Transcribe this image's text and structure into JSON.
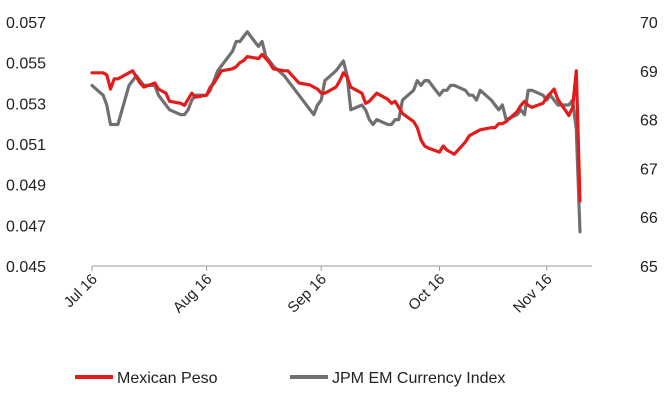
{
  "chart_data": {
    "type": "line",
    "title": "",
    "x": [
      "01-Jul-16",
      "04-Jul-16",
      "05-Jul-16",
      "06-Jul-16",
      "07-Jul-16",
      "08-Jul-16",
      "11-Jul-16",
      "12-Jul-16",
      "13-Jul-16",
      "14-Jul-16",
      "15-Jul-16",
      "18-Jul-16",
      "19-Jul-16",
      "20-Jul-16",
      "21-Jul-16",
      "22-Jul-16",
      "25-Jul-16",
      "26-Jul-16",
      "27-Jul-16",
      "28-Jul-16",
      "29-Jul-16",
      "01-Aug-16",
      "02-Aug-16",
      "03-Aug-16",
      "04-Aug-16",
      "05-Aug-16",
      "08-Aug-16",
      "09-Aug-16",
      "10-Aug-16",
      "11-Aug-16",
      "12-Aug-16",
      "15-Aug-16",
      "16-Aug-16",
      "17-Aug-16",
      "18-Aug-16",
      "19-Aug-16",
      "22-Aug-16",
      "23-Aug-16",
      "24-Aug-16",
      "25-Aug-16",
      "26-Aug-16",
      "29-Aug-16",
      "30-Aug-16",
      "31-Aug-16",
      "01-Sep-16",
      "02-Sep-16",
      "05-Sep-16",
      "06-Sep-16",
      "07-Sep-16",
      "08-Sep-16",
      "09-Sep-16",
      "12-Sep-16",
      "13-Sep-16",
      "14-Sep-16",
      "15-Sep-16",
      "16-Sep-16",
      "19-Sep-16",
      "20-Sep-16",
      "21-Sep-16",
      "22-Sep-16",
      "23-Sep-16",
      "26-Sep-16",
      "27-Sep-16",
      "28-Sep-16",
      "29-Sep-16",
      "30-Sep-16",
      "03-Oct-16",
      "04-Oct-16",
      "05-Oct-16",
      "06-Oct-16",
      "07-Oct-16",
      "10-Oct-16",
      "11-Oct-16",
      "12-Oct-16",
      "13-Oct-16",
      "14-Oct-16",
      "17-Oct-16",
      "18-Oct-16",
      "19-Oct-16",
      "20-Oct-16",
      "21-Oct-16",
      "24-Oct-16",
      "25-Oct-16",
      "26-Oct-16",
      "27-Oct-16",
      "28-Oct-16",
      "31-Oct-16",
      "01-Nov-16",
      "02-Nov-16",
      "03-Nov-16",
      "04-Nov-16",
      "07-Nov-16",
      "08-Nov-16",
      "09-Nov-16",
      "10-Nov-16"
    ],
    "series": [
      {
        "name": "Mexican Peso",
        "color": "#e31b1b",
        "axis": "left",
        "values": [
          0.0545,
          0.0545,
          0.0544,
          0.0537,
          0.0542,
          0.0542,
          0.0545,
          0.0546,
          0.0543,
          0.054,
          0.0538,
          0.054,
          0.0537,
          0.0536,
          0.0535,
          0.0531,
          0.053,
          0.0529,
          0.0532,
          0.0535,
          0.0533,
          0.0534,
          0.0538,
          0.054,
          0.0543,
          0.0546,
          0.0547,
          0.0548,
          0.055,
          0.0551,
          0.0553,
          0.0552,
          0.0554,
          0.0552,
          0.055,
          0.0547,
          0.0546,
          0.0546,
          0.0544,
          0.0542,
          0.054,
          0.0539,
          0.0538,
          0.0537,
          0.0535,
          0.0535,
          0.0538,
          0.0541,
          0.0545,
          0.0543,
          0.0538,
          0.0535,
          0.053,
          0.0531,
          0.0533,
          0.0535,
          0.0532,
          0.053,
          0.0531,
          0.0528,
          0.0525,
          0.0521,
          0.0518,
          0.0512,
          0.0509,
          0.0508,
          0.0506,
          0.0509,
          0.0507,
          0.0506,
          0.0505,
          0.0511,
          0.0514,
          0.0515,
          0.0516,
          0.0517,
          0.0518,
          0.0518,
          0.052,
          0.052,
          0.0521,
          0.0526,
          0.0529,
          0.0531,
          0.0529,
          0.0528,
          0.053,
          0.0533,
          0.0535,
          0.0537,
          0.0532,
          0.0524,
          0.0528,
          0.0546,
          0.0482
        ]
      },
      {
        "name": "JPM EM Currency Index",
        "color": "#707070",
        "axis": "right",
        "values": [
          68.7,
          68.5,
          68.3,
          67.9,
          67.9,
          67.9,
          68.7,
          68.8,
          68.9,
          68.8,
          68.7,
          68.7,
          68.5,
          68.4,
          68.3,
          68.2,
          68.1,
          68.1,
          68.2,
          68.4,
          68.5,
          68.5,
          68.6,
          68.8,
          69.0,
          69.1,
          69.4,
          69.6,
          69.6,
          69.7,
          69.8,
          69.5,
          69.6,
          69.3,
          69.2,
          69.1,
          68.9,
          68.8,
          68.7,
          68.6,
          68.5,
          68.2,
          68.1,
          68.3,
          68.4,
          68.8,
          69.0,
          69.1,
          69.2,
          68.9,
          68.2,
          68.3,
          68.2,
          68.0,
          67.9,
          68.0,
          67.9,
          67.9,
          68.0,
          68.0,
          68.4,
          68.6,
          68.8,
          68.7,
          68.8,
          68.8,
          68.5,
          68.6,
          68.6,
          68.7,
          68.7,
          68.6,
          68.5,
          68.5,
          68.4,
          68.6,
          68.4,
          68.3,
          68.2,
          68.3,
          68.0,
          68.1,
          68.2,
          68.1,
          68.6,
          68.6,
          68.5,
          68.4,
          68.5,
          68.4,
          68.3,
          68.3,
          68.4,
          67.8,
          65.7
        ]
      }
    ],
    "y_left": {
      "ylim": [
        0.045,
        0.057
      ],
      "ticks": [
        "0.057",
        "0.055",
        "0.053",
        "0.051",
        "0.049",
        "0.047",
        "0.045"
      ]
    },
    "y_right": {
      "ylim": [
        65,
        70
      ],
      "ticks": [
        "70",
        "69",
        "68",
        "67",
        "66",
        "65"
      ]
    },
    "x_ticks": [
      {
        "date": "01-Jul-16",
        "label": "Jul 16"
      },
      {
        "date": "01-Aug-16",
        "label": "Aug 16"
      },
      {
        "date": "01-Sep-16",
        "label": "Sep 16"
      },
      {
        "date": "03-Oct-16",
        "label": "Oct 16"
      },
      {
        "date": "01-Nov-16",
        "label": "Nov 16"
      }
    ],
    "xlabel": "",
    "ylabel": "",
    "grid": false,
    "legend": {
      "position": "bottom",
      "entries": [
        "Mexican Peso",
        "JPM EM Currency Index"
      ]
    }
  }
}
